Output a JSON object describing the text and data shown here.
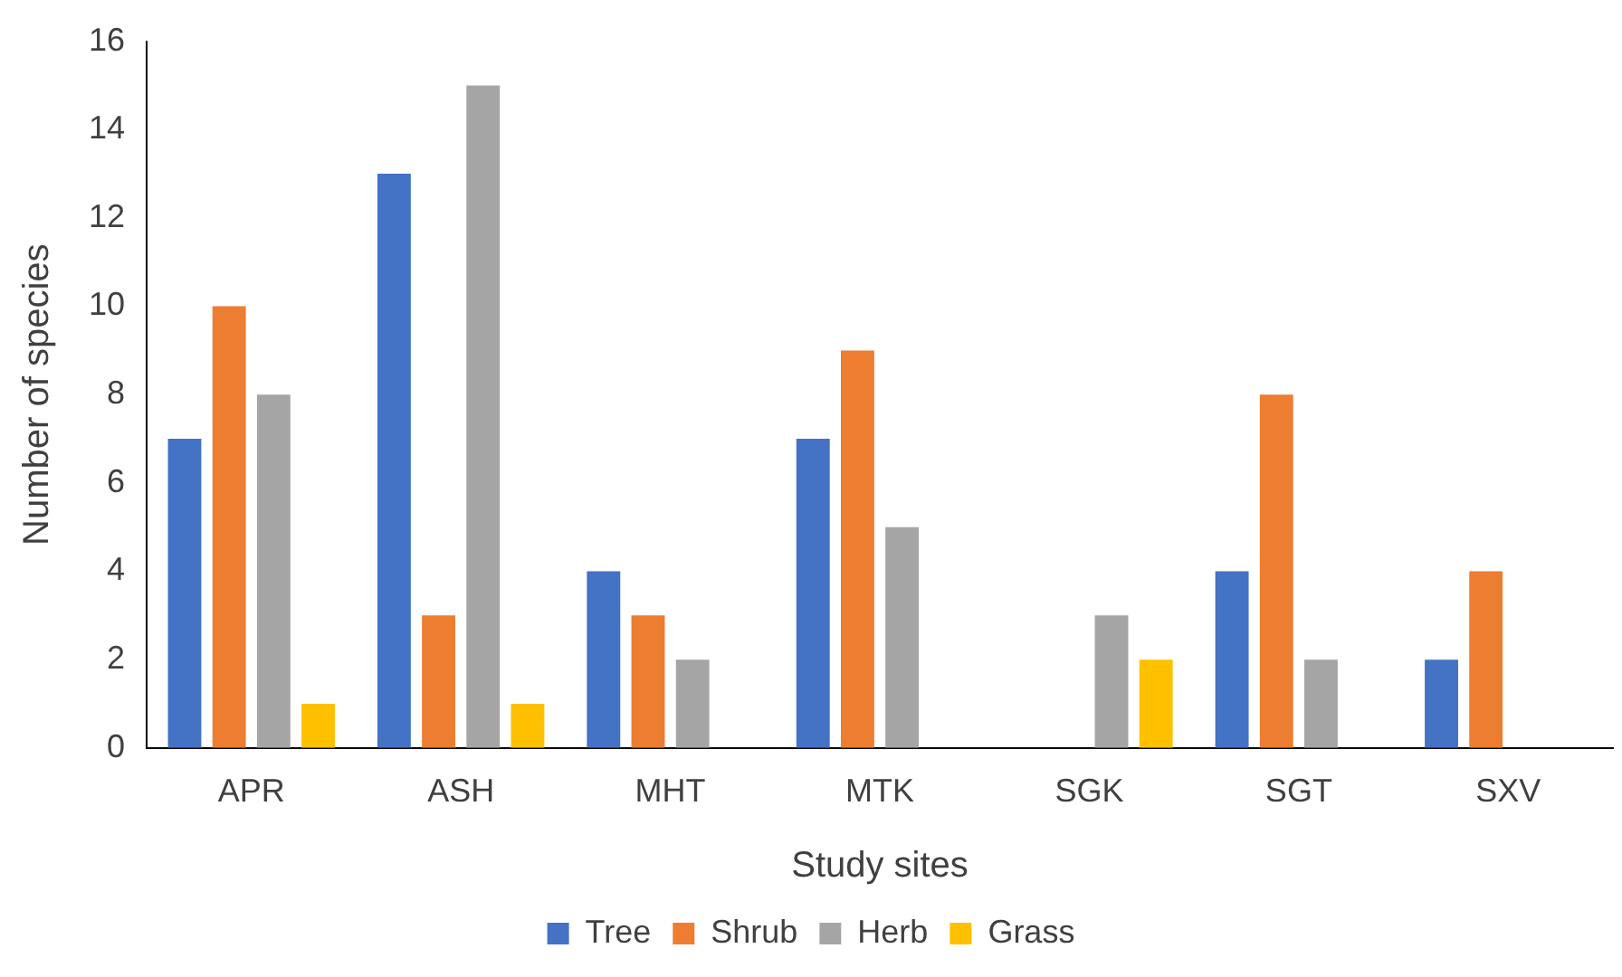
{
  "chart_data": {
    "type": "bar",
    "xlabel": "Study sites",
    "ylabel": "Number of species",
    "categories": [
      "APR",
      "ASH",
      "MHT",
      "MTK",
      "SGK",
      "SGT",
      "SXV"
    ],
    "series": [
      {
        "name": "Tree",
        "color": "#4472c4",
        "values": [
          7,
          13,
          4,
          7,
          0,
          4,
          2
        ]
      },
      {
        "name": "Shrub",
        "color": "#ed7d31",
        "values": [
          10,
          3,
          3,
          9,
          0,
          8,
          4
        ]
      },
      {
        "name": "Herb",
        "color": "#a5a5a5",
        "values": [
          8,
          15,
          2,
          5,
          3,
          2,
          0
        ]
      },
      {
        "name": "Grass",
        "color": "#ffc000",
        "values": [
          1,
          1,
          0,
          0,
          2,
          0,
          0
        ]
      }
    ],
    "ylim": [
      0,
      16
    ],
    "yticks": [
      0,
      2,
      4,
      6,
      8,
      10,
      12,
      14,
      16
    ],
    "grid": false,
    "legend": "bottom"
  }
}
